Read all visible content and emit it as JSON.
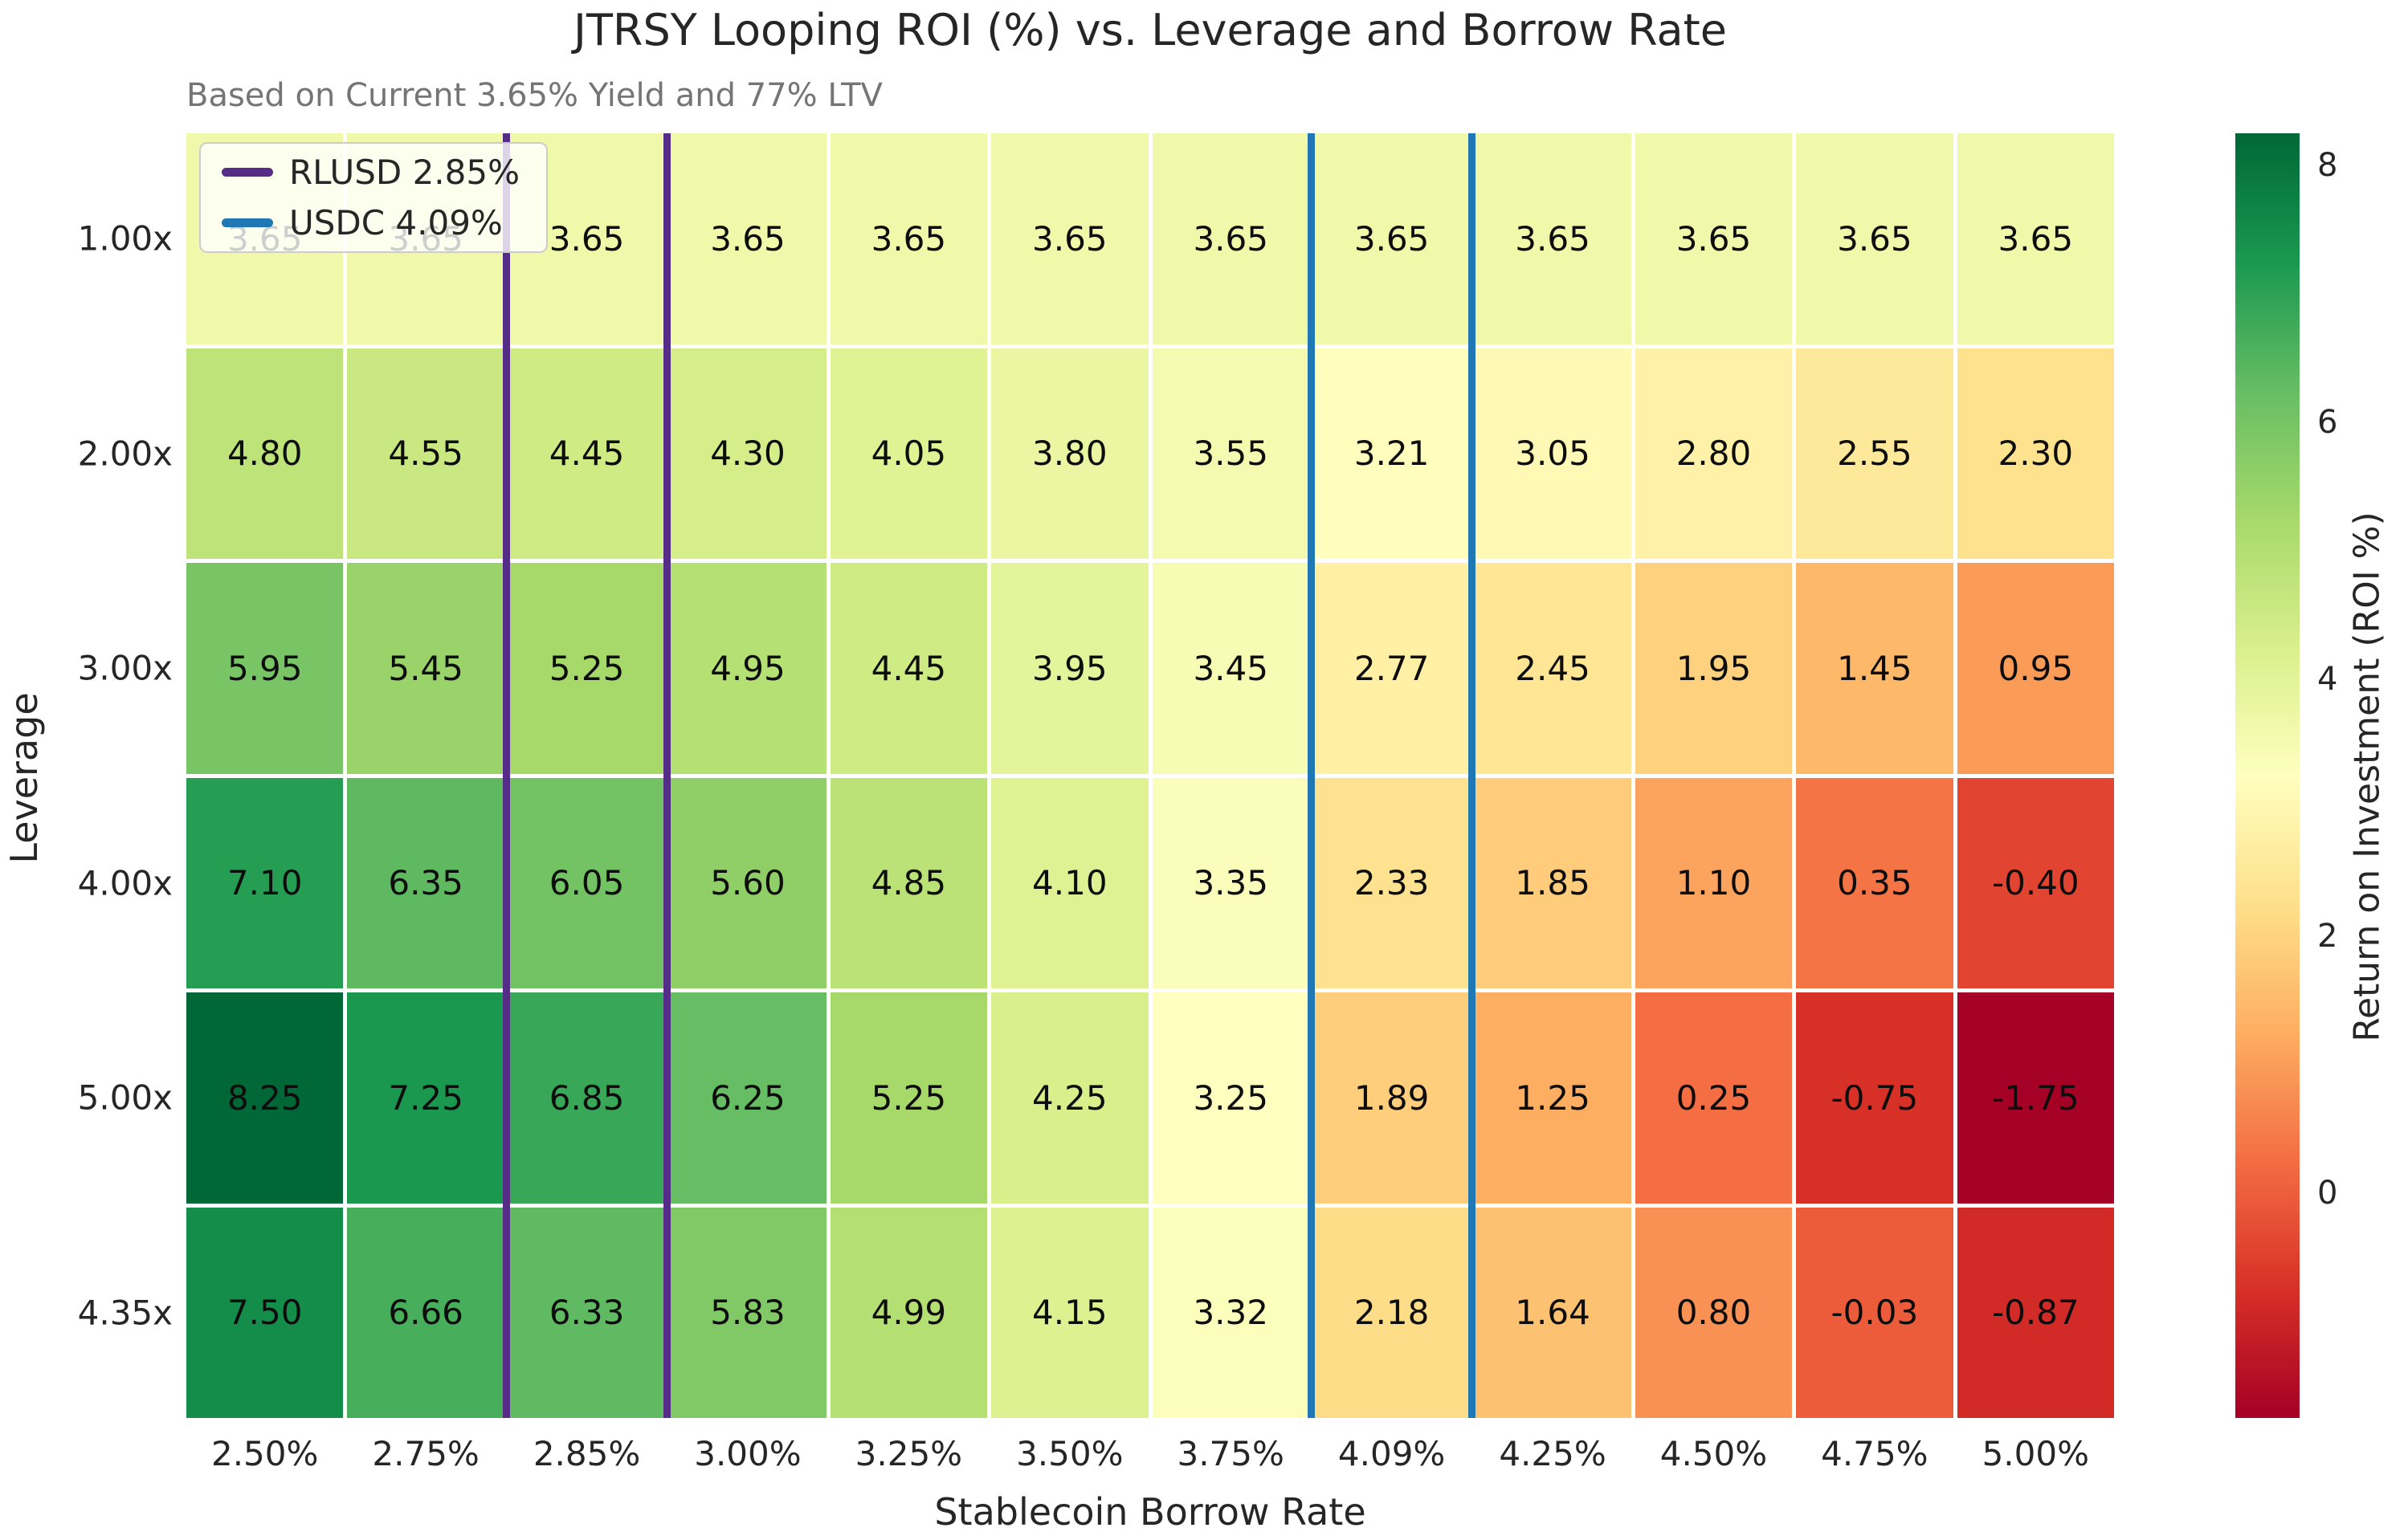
{
  "chart_data": {
    "type": "heatmap",
    "title": "JTRSY Looping ROI (%) vs. Leverage and Borrow Rate",
    "subtitle": "Based on Current 3.65% Yield and 77% LTV",
    "xlabel": "Stablecoin Borrow Rate",
    "ylabel": "Leverage",
    "categories": [
      "2.50%",
      "2.75%",
      "2.85%",
      "3.00%",
      "3.25%",
      "3.50%",
      "3.75%",
      "4.09%",
      "4.25%",
      "4.50%",
      "4.75%",
      "5.00%"
    ],
    "rows": [
      {
        "label": "1.00x",
        "values": [
          3.65,
          3.65,
          3.65,
          3.65,
          3.65,
          3.65,
          3.65,
          3.65,
          3.65,
          3.65,
          3.65,
          3.65
        ]
      },
      {
        "label": "2.00x",
        "values": [
          4.8,
          4.55,
          4.45,
          4.3,
          4.05,
          3.8,
          3.55,
          3.21,
          3.05,
          2.8,
          2.55,
          2.3
        ]
      },
      {
        "label": "3.00x",
        "values": [
          5.95,
          5.45,
          5.25,
          4.95,
          4.45,
          3.95,
          3.45,
          2.77,
          2.45,
          1.95,
          1.45,
          0.95
        ]
      },
      {
        "label": "4.00x",
        "values": [
          7.1,
          6.35,
          6.05,
          5.6,
          4.85,
          4.1,
          3.35,
          2.33,
          1.85,
          1.1,
          0.35,
          -0.4
        ]
      },
      {
        "label": "5.00x",
        "values": [
          8.25,
          7.25,
          6.85,
          6.25,
          5.25,
          4.25,
          3.25,
          1.89,
          1.25,
          0.25,
          -0.75,
          -1.75
        ]
      },
      {
        "label": "4.35x",
        "values": [
          7.5,
          6.66,
          6.33,
          5.83,
          4.99,
          4.15,
          3.32,
          2.18,
          1.64,
          0.8,
          -0.03,
          -0.87
        ]
      }
    ],
    "value_decimals": 2,
    "colormap": {
      "name": "RdYlGn",
      "stops": [
        "#a50026",
        "#d73027",
        "#f46d43",
        "#fdae61",
        "#fee08b",
        "#ffffbf",
        "#d9ef8b",
        "#a6d96a",
        "#66bd63",
        "#1a9850",
        "#006837"
      ],
      "vmin": -1.75,
      "vmax": 8.25
    },
    "reference_lines": [
      {
        "label": "RLUSD 2.85%",
        "column": "2.85%",
        "color": "#552d87"
      },
      {
        "label": "USDC 4.09%",
        "column": "4.09%",
        "color": "#1f77b4"
      }
    ],
    "colorbar": {
      "label": "Return on Investment (ROI %)",
      "ticks": [
        8,
        6,
        4,
        2,
        0
      ]
    },
    "legend_position": "upper left",
    "grid": false
  }
}
